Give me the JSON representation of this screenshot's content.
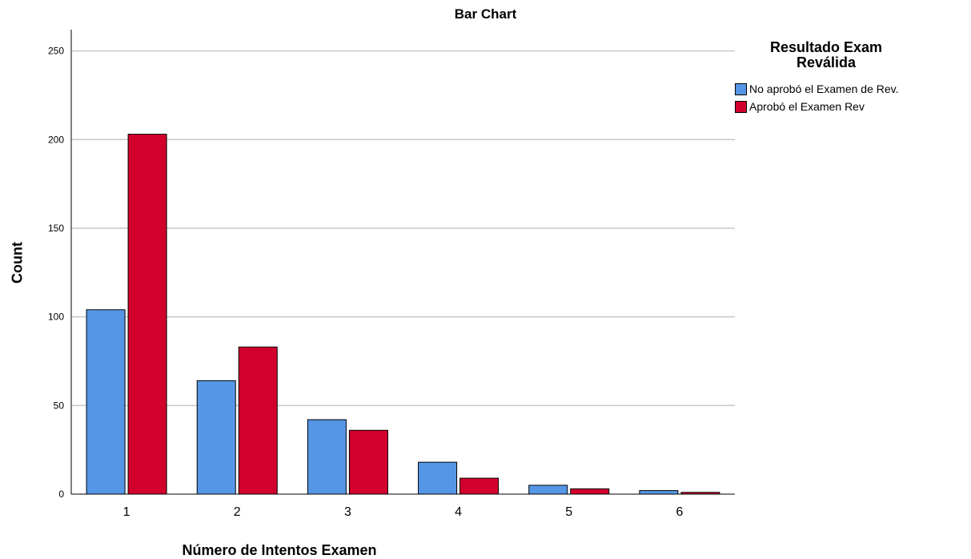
{
  "chart_data": {
    "type": "bar",
    "title": "Bar Chart",
    "xlabel": "Número de Intentos Examen",
    "ylabel": "Count",
    "categories": [
      "1",
      "2",
      "3",
      "4",
      "5",
      "6"
    ],
    "yticks": [
      0,
      50,
      100,
      150,
      200,
      250
    ],
    "ylim": [
      0,
      262
    ],
    "grid": true,
    "legend_title_lines": [
      "Resultado Exam",
      "Reválida"
    ],
    "legend_position": "right",
    "series": [
      {
        "name": "No aprobó el Examen de Rev.",
        "color": "#5596e6",
        "values": [
          104,
          64,
          42,
          18,
          5,
          2
        ]
      },
      {
        "name": "Aprobó el Examen Rev",
        "color": "#d2002d",
        "values": [
          203,
          83,
          36,
          9,
          3,
          1
        ]
      }
    ]
  }
}
